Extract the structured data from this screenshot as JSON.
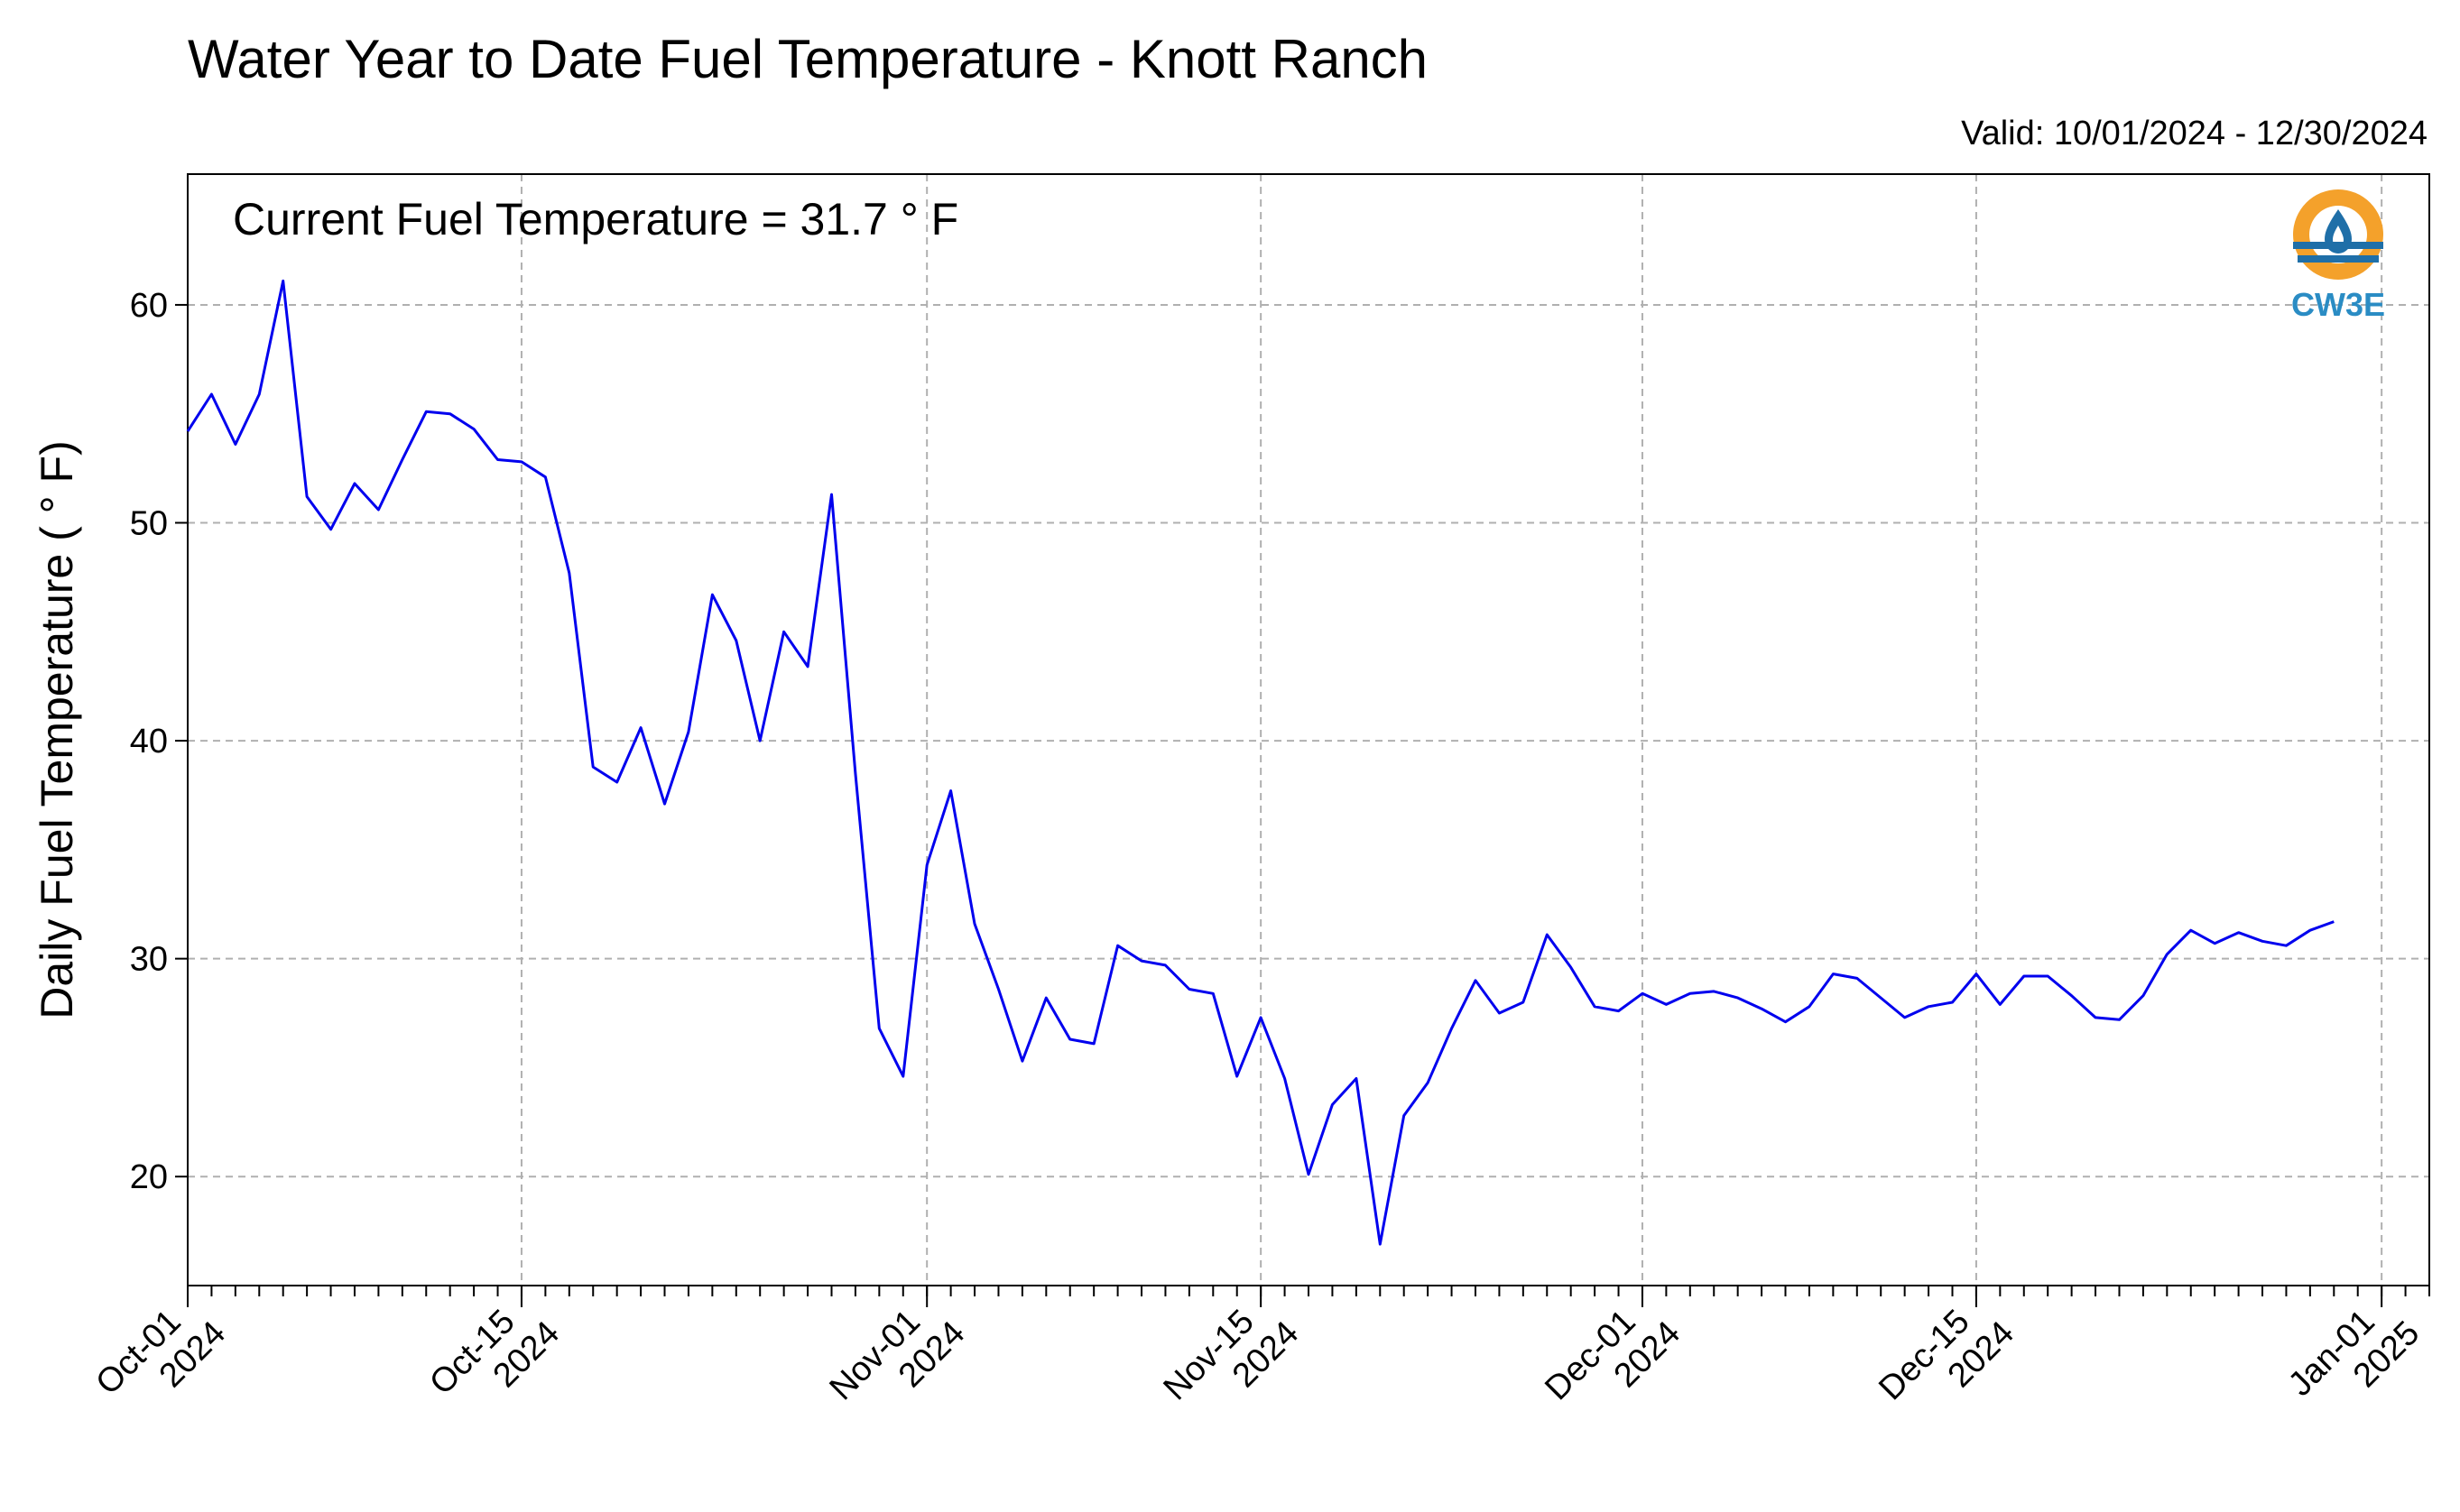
{
  "chart_data": {
    "type": "line",
    "title": "Water Year to Date Fuel Temperature - Knott Ranch",
    "subtitle": "Valid: 10/01/2024 - 12/30/2024",
    "annotation": "Current Fuel Temperature = 31.7  ° F",
    "xlabel": "",
    "ylabel": "Daily Fuel Temperature ( ° F)",
    "ylim": [
      15,
      66
    ],
    "xlim": [
      "2024-10-01",
      "2025-01-03"
    ],
    "yticks": [
      20,
      30,
      40,
      50,
      60
    ],
    "xticks": [
      {
        "date": "2024-10-01",
        "line1": "Oct-01",
        "line2": "2024"
      },
      {
        "date": "2024-10-15",
        "line1": "Oct-15",
        "line2": "2024"
      },
      {
        "date": "2024-11-01",
        "line1": "Nov-01",
        "line2": "2024"
      },
      {
        "date": "2024-11-15",
        "line1": "Nov-15",
        "line2": "2024"
      },
      {
        "date": "2024-12-01",
        "line1": "Dec-01",
        "line2": "2024"
      },
      {
        "date": "2024-12-15",
        "line1": "Dec-15",
        "line2": "2024"
      },
      {
        "date": "2025-01-01",
        "line1": "Jan-01",
        "line2": "2025"
      }
    ],
    "grid": true,
    "series": [
      {
        "color": "#0000ee",
        "x_start": "2024-10-01",
        "step_days": 1,
        "values": [
          54.2,
          55.9,
          53.6,
          55.9,
          61.1,
          51.2,
          49.7,
          51.8,
          50.6,
          52.9,
          55.1,
          55.0,
          54.3,
          52.9,
          52.8,
          52.1,
          47.7,
          38.8,
          38.1,
          40.6,
          37.1,
          40.4,
          46.7,
          44.6,
          40.0,
          45.0,
          43.4,
          51.3,
          38.5,
          26.8,
          24.6,
          34.3,
          37.7,
          31.6,
          28.6,
          25.3,
          28.2,
          26.3,
          26.1,
          30.6,
          29.9,
          29.7,
          28.6,
          28.4,
          24.6,
          27.3,
          24.5,
          20.1,
          23.3,
          24.5,
          16.9,
          22.8,
          24.3,
          26.8,
          29.0,
          27.5,
          28.0,
          31.1,
          29.6,
          27.8,
          27.6,
          28.4,
          27.9,
          28.4,
          28.5,
          28.2,
          27.7,
          27.1,
          27.8,
          29.3,
          29.1,
          28.2,
          27.3,
          27.8,
          28.0,
          29.3,
          27.9,
          29.2,
          29.2,
          28.3,
          27.3,
          27.2,
          28.3,
          30.2,
          31.3,
          30.7,
          31.2,
          30.8,
          30.6,
          31.3,
          31.7
        ]
      }
    ]
  },
  "logo": {
    "text": "CW3E",
    "text_color": "#2a8cc4",
    "ring_color": "#f4a12b",
    "water_color": "#1f6fa8"
  },
  "colors": {
    "line": "#0000ee",
    "grid": "#b0b0b0",
    "axis": "#000000"
  }
}
